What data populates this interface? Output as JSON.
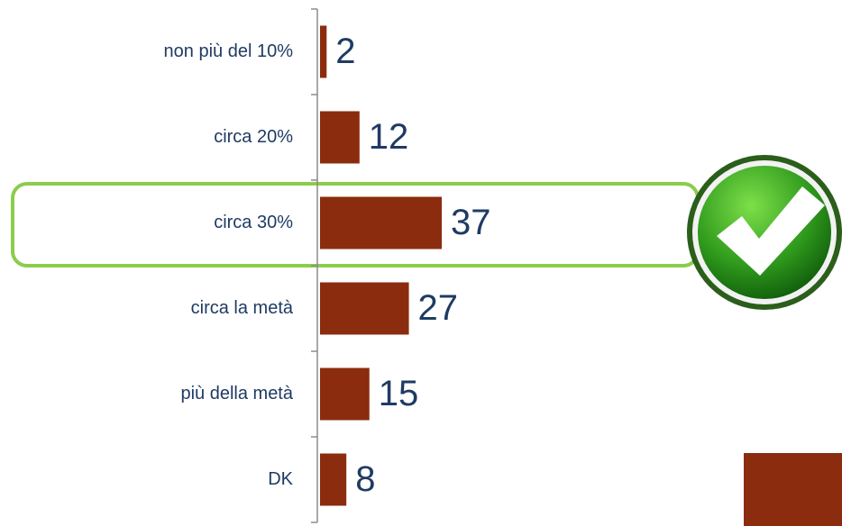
{
  "chart_data": {
    "type": "hbar",
    "categories": [
      "non più del 10%",
      "circa 20%",
      "circa 30%",
      "circa la metà",
      "più della metà",
      "DK"
    ],
    "values": [
      2,
      12,
      37,
      27,
      15,
      8
    ],
    "color": "#8b2c0e"
  }
}
